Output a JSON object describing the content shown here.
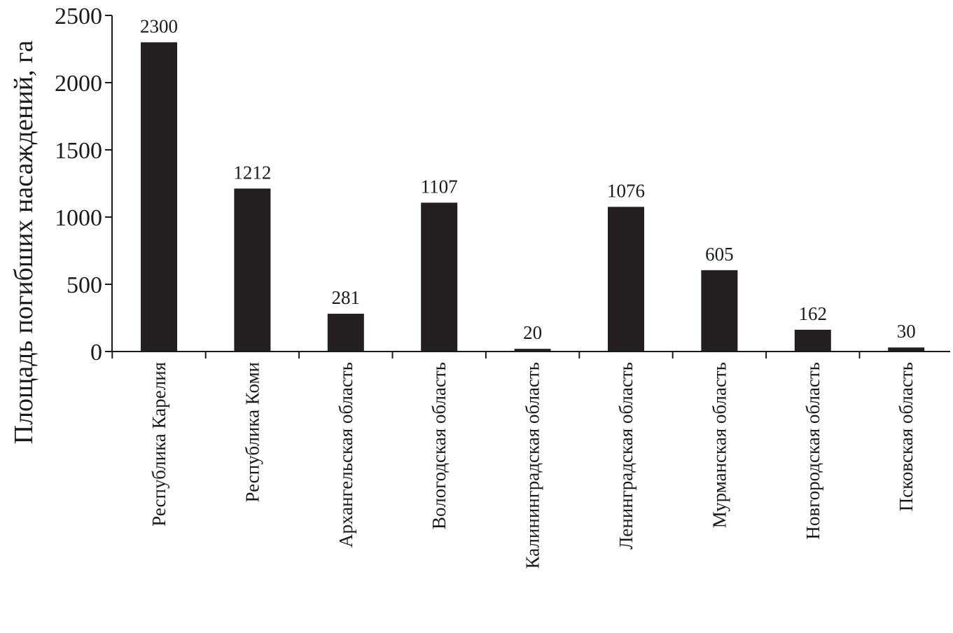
{
  "chart_data": {
    "type": "bar",
    "categories": [
      "Республика Карелия",
      "Республика Коми",
      "Архангельская область",
      "Вологодская область",
      "Калининградская область",
      "Ленинградская область",
      "Мурманская область",
      "Новгородская область",
      "Псковская область"
    ],
    "values": [
      2300,
      1212,
      281,
      1107,
      20,
      1076,
      605,
      162,
      30
    ],
    "data_labels": [
      "2300",
      "1212",
      "281",
      "1107",
      "20",
      "1076",
      "605",
      "162",
      "30"
    ],
    "ylabel": "Площадь погибших насаждений, га",
    "xlabel": "",
    "ylim": [
      0,
      2500
    ],
    "yticks": [
      0,
      500,
      1000,
      1500,
      2000,
      2500
    ],
    "ytick_labels": [
      "0",
      "500",
      "1000",
      "1500",
      "2000",
      "2500"
    ],
    "grid": false,
    "legend": "none",
    "bar_color": "#231f20"
  }
}
